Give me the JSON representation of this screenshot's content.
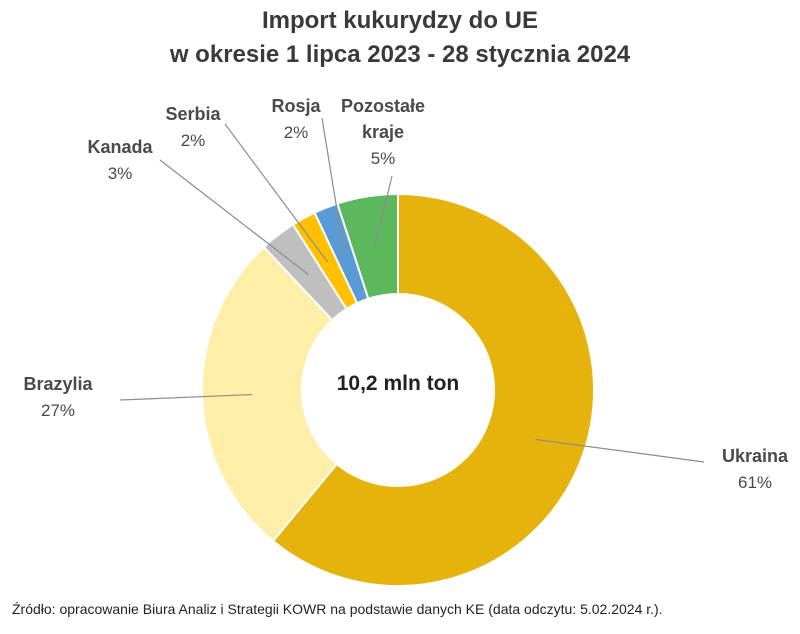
{
  "chart_data": {
    "type": "donut",
    "title": [
      "Import kukurydzy do UE",
      "w okresie 1 lipca 2023 - 28 stycznia 2024"
    ],
    "center_label": "10,2 mln ton",
    "total": "10,2 mln ton",
    "slices": [
      {
        "name": "Ukraina",
        "value": 61,
        "label": "61%",
        "color": "#E6B20C",
        "label_lines": [
          "Ukraina"
        ]
      },
      {
        "name": "Brazylia",
        "value": 27,
        "label": "27%",
        "color": "#FFEEA8",
        "label_lines": [
          "Brazylia"
        ]
      },
      {
        "name": "Kanada",
        "value": 3,
        "label": "3%",
        "color": "#BFBFBF",
        "label_lines": [
          "Kanada"
        ]
      },
      {
        "name": "Serbia",
        "value": 2,
        "label": "2%",
        "color": "#FFC000",
        "label_lines": [
          "Serbia"
        ]
      },
      {
        "name": "Rosja",
        "value": 2,
        "label": "2%",
        "color": "#5B9BD5",
        "label_lines": [
          "Rosja"
        ]
      },
      {
        "name": "Pozostałe kraje",
        "value": 5,
        "label": "5%",
        "color": "#5CB85C",
        "label_lines": [
          "Pozostałe",
          "kraje"
        ]
      }
    ],
    "source": "Źródło: opracowanie Biura Analiz i Strategii KOWR na podstawie danych KE (data odczytu: 5.02.2024 r.)."
  }
}
